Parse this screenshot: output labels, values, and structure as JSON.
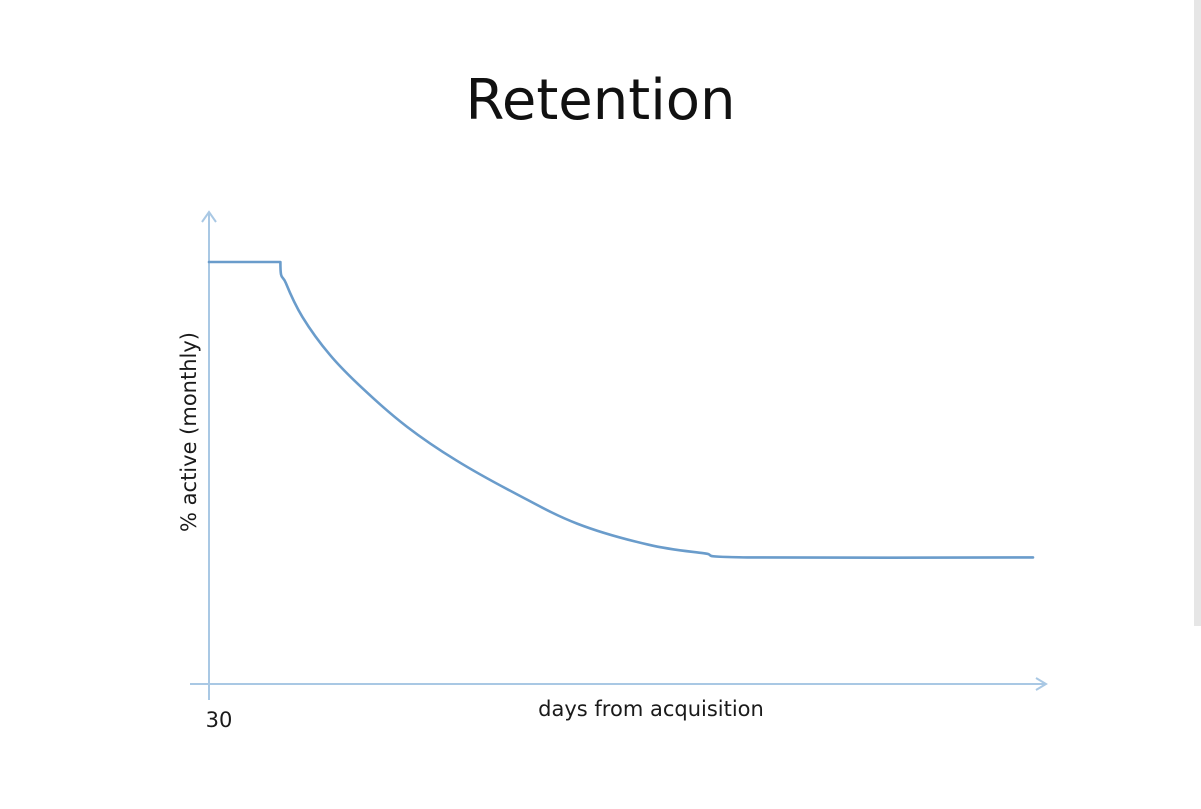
{
  "slide": {
    "title": "Retention"
  },
  "chart_data": {
    "type": "line",
    "title": "Retention",
    "xlabel": "days from acquisition",
    "ylabel": "% active (monthly)",
    "x_ticks": [
      {
        "value": 30,
        "label": "30"
      }
    ],
    "xlim": [
      30,
      180
    ],
    "ylim": [
      0,
      100
    ],
    "grid": false,
    "axis_color": "#a9c8e4",
    "series": [
      {
        "color": "#6a9ccb",
        "points": [
          [
            30,
            100
          ],
          [
            43,
            100
          ],
          [
            44,
            95
          ],
          [
            47,
            87
          ],
          [
            52,
            78
          ],
          [
            58,
            70
          ],
          [
            66,
            61
          ],
          [
            75,
            53
          ],
          [
            86,
            45
          ],
          [
            97,
            38
          ],
          [
            110,
            33
          ],
          [
            120,
            31
          ],
          [
            128,
            30
          ],
          [
            180,
            30
          ]
        ]
      }
    ]
  }
}
